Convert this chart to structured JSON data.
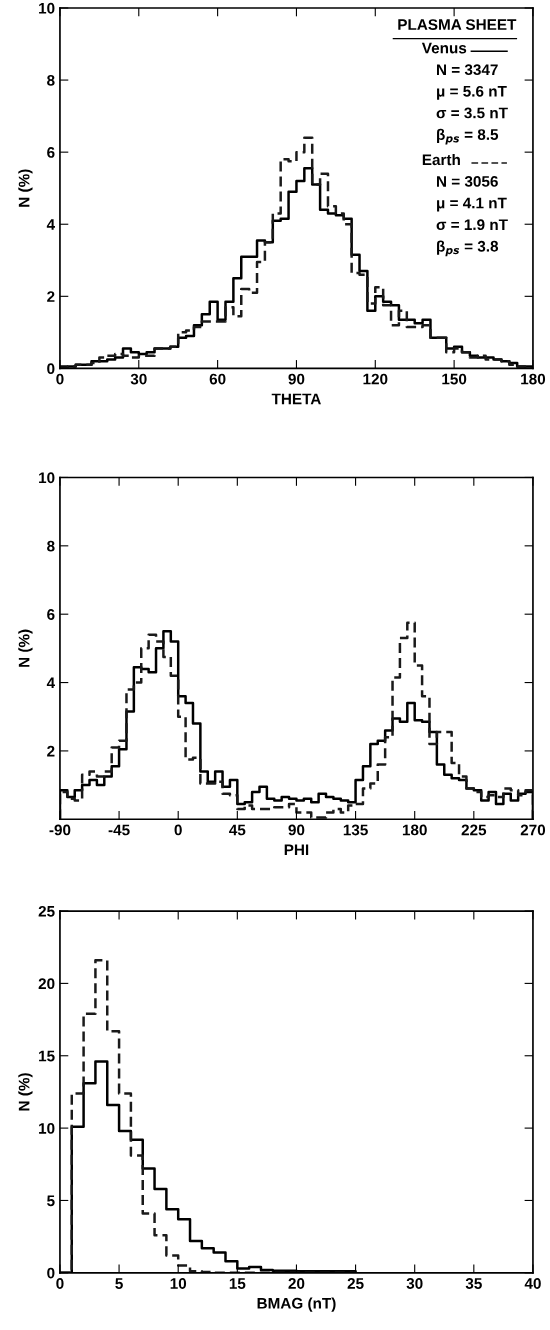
{
  "chart_data": [
    {
      "type": "histogram",
      "xlabel": "THETA",
      "ylabel": "N (%)",
      "legend": "top right",
      "legend_title": "PLASMA SHEET",
      "annotations": [
        "N = 3347",
        "μ = 5.6 nT",
        "σ = 3.5 nT",
        "β$_{ps}$ = 8.5",
        "N = 3056",
        "μ = 4.1 nT",
        "σ = 1.9 nT",
        "β$_{ps}$ = 3.8"
      ],
      "xlim": [
        0,
        180
      ],
      "xticks": [
        0,
        30,
        60,
        90,
        120,
        150,
        180
      ],
      "ylim": [
        0,
        10
      ],
      "yticks": [
        0,
        2,
        4,
        6,
        8,
        10
      ],
      "grid": false,
      "bins": [
        0,
        3,
        6,
        9,
        12,
        15,
        18,
        21,
        24,
        27,
        30,
        33,
        36,
        39,
        42,
        45,
        48,
        51,
        54,
        57,
        60,
        63,
        66,
        69,
        72,
        75,
        78,
        81,
        84,
        87,
        90,
        93,
        96,
        99,
        102,
        105,
        108,
        111,
        114,
        117,
        120,
        123,
        126,
        129,
        132,
        135,
        138,
        141,
        144,
        147,
        150,
        153,
        156,
        159,
        162,
        165,
        168,
        171,
        174,
        177,
        180
      ],
      "series": [
        {
          "name": "Venus",
          "color": "#000000",
          "line_style": "solid",
          "values": [
            0.05,
            0.05,
            0.1,
            0.1,
            0.2,
            0.2,
            0.25,
            0.3,
            0.55,
            0.45,
            0.4,
            0.45,
            0.55,
            0.55,
            0.6,
            0.85,
            0.9,
            1.2,
            1.5,
            1.85,
            1.35,
            1.85,
            2.5,
            3.1,
            3.1,
            3.55,
            3.5,
            4.1,
            4.15,
            4.9,
            5.2,
            5.55,
            5.1,
            4.4,
            4.3,
            4.25,
            4.15,
            3.15,
            2.7,
            1.6,
            2.0,
            1.85,
            1.75,
            1.35,
            1.35,
            1.25,
            1.35,
            0.85,
            0.85,
            0.55,
            0.6,
            0.45,
            0.35,
            0.3,
            0.3,
            0.25,
            0.2,
            0.15,
            0.05,
            0.05
          ]
        },
        {
          "name": "Earth",
          "color": "#1a1a1a",
          "line_style": "dashed",
          "values": [
            0.02,
            0.05,
            0.1,
            0.1,
            0.15,
            0.3,
            0.35,
            0.4,
            0.35,
            0.3,
            0.35,
            0.35,
            0.55,
            0.55,
            0.6,
            1.0,
            1.05,
            1.15,
            1.3,
            1.3,
            1.3,
            1.7,
            1.45,
            2.2,
            2.1,
            2.95,
            3.5,
            4.3,
            5.8,
            5.75,
            6.0,
            6.4,
            5.1,
            5.4,
            4.5,
            4.3,
            4.0,
            2.65,
            2.6,
            1.8,
            2.25,
            1.75,
            1.2,
            1.6,
            1.15,
            1.15,
            1.2,
            0.85,
            0.85,
            0.45,
            0.55,
            0.45,
            0.3,
            0.35,
            0.25,
            0.25,
            0.2,
            0.1,
            0.05,
            0.0
          ]
        }
      ]
    },
    {
      "type": "histogram",
      "xlabel": "PHI",
      "ylabel": "N (%)",
      "xlim": [
        -90,
        270
      ],
      "xticks": [
        -90,
        -45,
        0,
        45,
        90,
        135,
        180,
        225,
        270
      ],
      "ylim": [
        0,
        10
      ],
      "yticks": [
        2,
        4,
        6,
        8,
        10
      ],
      "grid": false,
      "bins": [
        -90,
        -84.375,
        -78.75,
        -73.125,
        -67.5,
        -61.875,
        -56.25,
        -50.625,
        -45,
        -39.375,
        -33.75,
        -28.125,
        -22.5,
        -16.875,
        -11.25,
        -5.625,
        0,
        5.625,
        11.25,
        16.875,
        22.5,
        28.125,
        33.75,
        39.375,
        45,
        50.625,
        56.25,
        61.875,
        67.5,
        73.125,
        78.75,
        84.375,
        90,
        95.625,
        101.25,
        106.875,
        112.5,
        118.125,
        123.75,
        129.375,
        135,
        140.625,
        146.25,
        151.875,
        157.5,
        163.125,
        168.75,
        174.375,
        180,
        185.625,
        191.25,
        196.875,
        202.5,
        208.125,
        213.75,
        219.375,
        225,
        230.625,
        236.25,
        241.875,
        247.5,
        253.125,
        258.75,
        264.375,
        270
      ],
      "series": [
        {
          "color": "#000000",
          "line_style": "solid",
          "values": [
            0.85,
            0.65,
            0.85,
            1.0,
            1.15,
            1.0,
            1.25,
            1.55,
            2.05,
            3.15,
            4.45,
            4.4,
            4.3,
            5.0,
            5.5,
            5.2,
            3.6,
            3.4,
            2.8,
            1.4,
            1.1,
            1.4,
            0.95,
            1.15,
            0.45,
            0.5,
            0.8,
            0.95,
            0.6,
            0.55,
            0.65,
            0.6,
            0.55,
            0.6,
            0.5,
            0.75,
            0.65,
            0.6,
            0.55,
            0.5,
            1.15,
            1.55,
            2.2,
            2.3,
            2.6,
            2.95,
            2.85,
            3.4,
            2.9,
            2.85,
            2.55,
            1.6,
            1.3,
            1.2,
            1.15,
            0.9,
            0.85,
            0.55,
            0.8,
            0.45,
            0.75,
            0.55,
            0.75,
            0.8
          ]
        },
        {
          "color": "#1a1a1a",
          "line_style": "dashed",
          "values": [
            0.8,
            0.6,
            0.55,
            1.3,
            1.4,
            1.25,
            1.4,
            2.1,
            2.3,
            3.8,
            4.0,
            5.0,
            5.4,
            5.2,
            4.75,
            4.2,
            3.0,
            1.75,
            1.8,
            1.05,
            1.05,
            1.1,
            0.75,
            0.7,
            0.3,
            0.4,
            0.3,
            0.3,
            0.3,
            0.35,
            0.35,
            0.45,
            0.2,
            0.2,
            0.05,
            0.05,
            0.2,
            0.3,
            0.2,
            0.4,
            0.45,
            0.9,
            1.05,
            1.6,
            2.4,
            4.15,
            5.3,
            5.75,
            4.5,
            3.6,
            2.2,
            2.55,
            2.55,
            1.65,
            1.25,
            0.9,
            0.8,
            0.65,
            0.7,
            0.65,
            0.9,
            0.85,
            0.7,
            0.85
          ]
        }
      ]
    },
    {
      "type": "histogram",
      "xlabel": "BMAG (nT)",
      "ylabel": "N (%)",
      "xlim": [
        0,
        40
      ],
      "xticks": [
        0,
        5,
        10,
        15,
        20,
        25,
        30,
        35,
        40
      ],
      "ylim": [
        0,
        25
      ],
      "yticks": [
        0,
        5,
        10,
        15,
        20,
        25
      ],
      "grid": false,
      "bins": [
        0,
        1,
        2,
        3,
        4,
        5,
        6,
        7,
        8,
        9,
        10,
        11,
        12,
        13,
        14,
        15,
        16,
        17,
        18,
        19,
        20,
        21,
        22,
        23,
        24,
        25
      ],
      "series": [
        {
          "color": "#000000",
          "line_style": "solid",
          "values": [
            0,
            10.1,
            13.1,
            14.6,
            11.6,
            9.8,
            9.2,
            7.2,
            5.8,
            4.4,
            3.7,
            2.2,
            1.7,
            1.4,
            0.8,
            0.3,
            0.4,
            0.2,
            0.15,
            0.15,
            0.1,
            0.1,
            0.1,
            0.1,
            0.1
          ]
        },
        {
          "color": "#1a1a1a",
          "line_style": "dashed",
          "values": [
            0,
            12.4,
            17.9,
            21.6,
            16.7,
            12.4,
            8.1,
            4.1,
            2.6,
            1.2,
            0.5,
            0.1,
            0.05,
            0,
            0,
            0,
            0,
            0,
            0,
            0,
            0,
            0,
            0,
            0,
            0
          ]
        }
      ]
    }
  ]
}
